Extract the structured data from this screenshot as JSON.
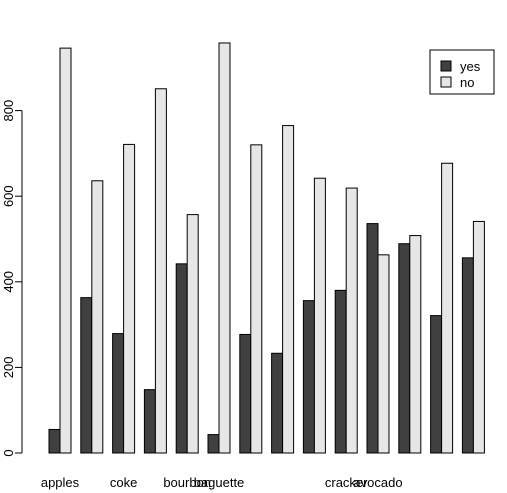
{
  "chart_data": {
    "type": "bar",
    "title": "",
    "xlabel": "",
    "ylabel": "",
    "categories": [
      "apples",
      "",
      "coke",
      "",
      "bourbon",
      "baguette",
      "",
      "",
      "",
      "cracker",
      "avocado",
      "",
      "",
      ""
    ],
    "series": [
      {
        "name": "yes",
        "color": "#404040",
        "values": [
          55,
          363,
          279,
          148,
          442,
          43,
          277,
          233,
          356,
          380,
          536,
          489,
          321,
          456
        ]
      },
      {
        "name": "no",
        "color": "#e6e6e6",
        "values": [
          946,
          636,
          721,
          851,
          557,
          958,
          720,
          765,
          642,
          619,
          463,
          508,
          677,
          541
        ]
      }
    ],
    "ylim": [
      0,
      1000
    ],
    "y_ticks": [
      0,
      200,
      400,
      600,
      800
    ],
    "grid": false,
    "legend_position": "top-right"
  }
}
